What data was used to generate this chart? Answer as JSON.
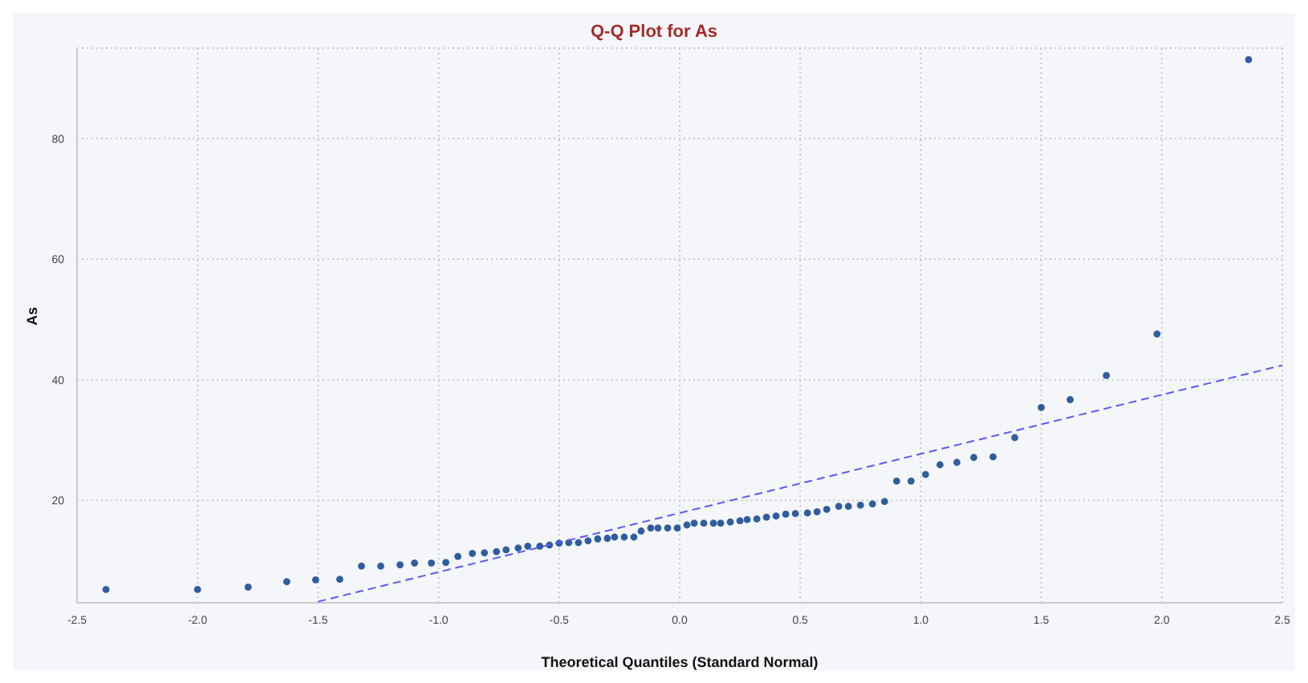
{
  "chart_data": {
    "type": "scatter",
    "title": "Q-Q Plot for As",
    "xlabel": "Theoretical Quantiles (Standard Normal)",
    "ylabel": "As",
    "xlim": [
      -2.5,
      2.5
    ],
    "xticks": [
      -2.5,
      {
        "value": -2,
        "label": "-2.0"
      },
      -1.5,
      {
        "value": -1,
        "label": "-1.0"
      },
      -0.5,
      {
        "value": 0,
        "label": "0.0"
      },
      0.5,
      {
        "value": 1,
        "label": "1.0"
      },
      1.5,
      {
        "value": 2,
        "label": "2.0"
      },
      2.5
    ],
    "ylim": [
      3,
      95
    ],
    "yticks": [
      20,
      40,
      60,
      80
    ],
    "grid": true,
    "marker": "circle",
    "legend": false,
    "series": [
      {
        "color": "#2f5d9e",
        "x": [
          -2.38,
          -2.0,
          -1.79,
          -1.63,
          -1.51,
          -1.41,
          -1.32,
          -1.24,
          -1.16,
          -1.1,
          -1.03,
          -0.97,
          -0.92,
          -0.86,
          -0.81,
          -0.76,
          -0.72,
          -0.67,
          -0.63,
          -0.58,
          -0.54,
          -0.5,
          -0.46,
          -0.42,
          -0.38,
          -0.34,
          -0.3,
          -0.27,
          -0.23,
          -0.19,
          -0.16,
          -0.12,
          -0.09,
          -0.05,
          -0.01,
          0.03,
          0.06,
          0.1,
          0.14,
          0.17,
          0.21,
          0.25,
          0.28,
          0.32,
          0.36,
          0.4,
          0.44,
          0.48,
          0.53,
          0.57,
          0.61,
          0.66,
          0.7,
          0.75,
          0.8,
          0.85,
          0.9,
          0.96,
          1.02,
          1.08,
          1.15,
          1.22,
          1.3,
          1.39,
          1.5,
          1.62,
          1.77,
          1.98,
          2.36
        ],
        "values": [
          5.2,
          5.2,
          5.6,
          6.5,
          6.8,
          6.9,
          9.1,
          9.1,
          9.3,
          9.6,
          9.6,
          9.7,
          10.7,
          11.2,
          11.3,
          11.5,
          11.8,
          12.1,
          12.4,
          12.4,
          12.6,
          12.9,
          13.0,
          13.0,
          13.3,
          13.6,
          13.7,
          13.9,
          13.9,
          13.9,
          14.9,
          15.4,
          15.4,
          15.4,
          15.4,
          15.9,
          16.2,
          16.2,
          16.2,
          16.2,
          16.4,
          16.6,
          16.8,
          16.9,
          17.2,
          17.4,
          17.7,
          17.8,
          17.9,
          18.1,
          18.5,
          19.0,
          19.0,
          19.2,
          19.4,
          19.8,
          23.2,
          23.2,
          24.3,
          25.9,
          26.3,
          27.1,
          27.2,
          30.4,
          35.4,
          36.7,
          40.7,
          47.6,
          93.1
        ]
      },
      {
        "type": "line",
        "color": "#5b5bf0",
        "line_style": "dashed",
        "marker": "none",
        "x": [
          -1.5,
          2.5
        ],
        "values": [
          3.2,
          42.4
        ]
      }
    ]
  }
}
